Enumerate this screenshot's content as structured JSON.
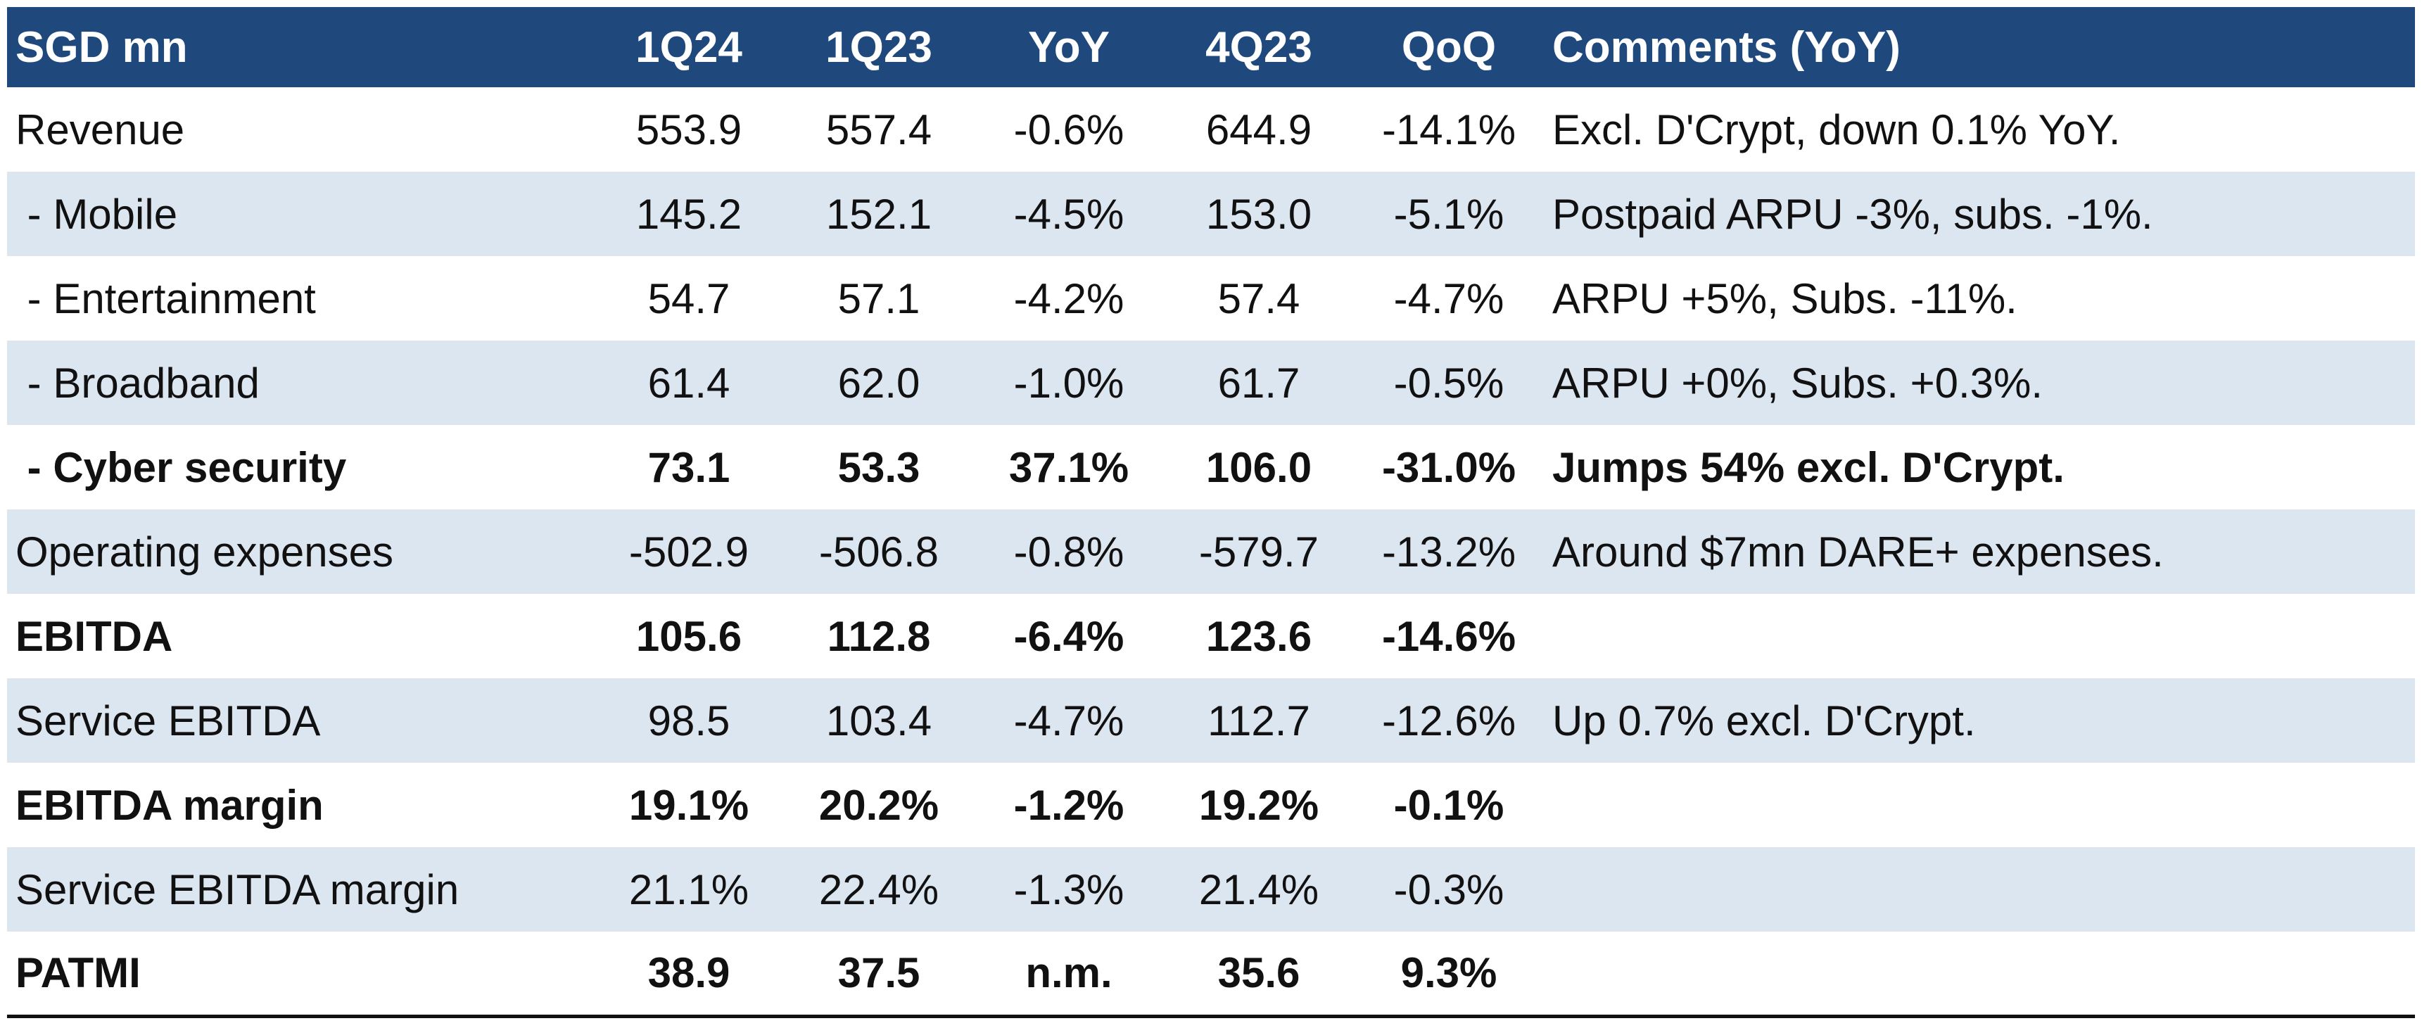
{
  "theme": {
    "header_bg": "#1f497d",
    "header_text": "#ffffff",
    "row_shade": "#dce6f1",
    "row_plain": "#ffffff"
  },
  "table": {
    "headers": [
      "SGD mn",
      "1Q24",
      "1Q23",
      "YoY",
      "4Q23",
      "QoQ",
      "Comments (YoY)"
    ],
    "rows": [
      {
        "cells": [
          "Revenue",
          "553.9",
          "557.4",
          "-0.6%",
          "644.9",
          "-14.1%",
          "Excl. D'Crypt, down 0.1% YoY."
        ],
        "shaded": false,
        "bold": false
      },
      {
        "cells": [
          " - Mobile",
          "145.2",
          "152.1",
          "-4.5%",
          "153.0",
          "-5.1%",
          "Postpaid ARPU -3%, subs. -1%."
        ],
        "shaded": true,
        "bold": false
      },
      {
        "cells": [
          " - Entertainment",
          "54.7",
          "57.1",
          "-4.2%",
          "57.4",
          "-4.7%",
          "ARPU +5%, Subs. -11%."
        ],
        "shaded": false,
        "bold": false
      },
      {
        "cells": [
          " - Broadband",
          "61.4",
          "62.0",
          "-1.0%",
          "61.7",
          "-0.5%",
          "ARPU +0%, Subs. +0.3%."
        ],
        "shaded": true,
        "bold": false
      },
      {
        "cells": [
          " - Cyber security",
          "73.1",
          "53.3",
          "37.1%",
          "106.0",
          "-31.0%",
          "Jumps 54% excl. D'Crypt."
        ],
        "shaded": false,
        "bold": true
      },
      {
        "cells": [
          "Operating expenses",
          "-502.9",
          "-506.8",
          "-0.8%",
          "-579.7",
          "-13.2%",
          "Around $7mn DARE+ expenses."
        ],
        "shaded": true,
        "bold": false
      },
      {
        "cells": [
          "EBITDA",
          "105.6",
          "112.8",
          "-6.4%",
          "123.6",
          "-14.6%",
          ""
        ],
        "shaded": false,
        "bold": true
      },
      {
        "cells": [
          "Service EBITDA",
          "98.5",
          "103.4",
          "-4.7%",
          "112.7",
          "-12.6%",
          "Up 0.7% excl. D'Crypt."
        ],
        "shaded": true,
        "bold": false
      },
      {
        "cells": [
          "EBITDA margin",
          "19.1%",
          "20.2%",
          "-1.2%",
          "19.2%",
          "-0.1%",
          ""
        ],
        "shaded": false,
        "bold": true
      },
      {
        "cells": [
          "Service EBITDA margin",
          "21.1%",
          "22.4%",
          "-1.3%",
          "21.4%",
          "-0.3%",
          ""
        ],
        "shaded": true,
        "bold": false
      },
      {
        "cells": [
          "PATMI",
          "38.9",
          "37.5",
          "n.m.",
          "35.6",
          "9.3%",
          ""
        ],
        "shaded": false,
        "bold": true
      }
    ]
  }
}
